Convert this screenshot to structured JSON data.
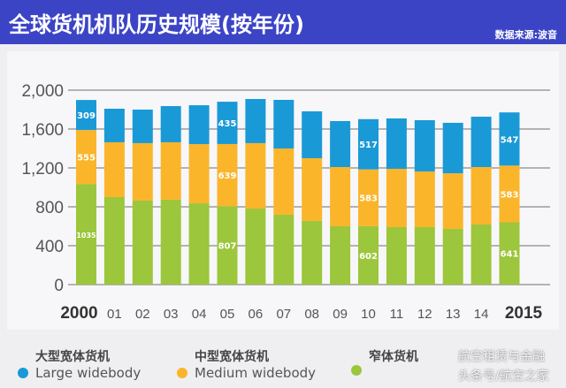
{
  "header": {
    "title": "全球货机机队历史规模(按年份)",
    "source": "数据来源:波音"
  },
  "colors": {
    "header": "#3c44c6",
    "large": "#1a99d7",
    "medium": "#fbb52b",
    "narrow": "#9cc63b"
  },
  "legend": [
    {
      "cn": "大型宽体货机",
      "en": "Large widebody",
      "color": "#1a99d7"
    },
    {
      "cn": "中型宽体货机",
      "en": "Medium widebody",
      "color": "#fbb52b"
    },
    {
      "cn": "窄体货机",
      "en": "",
      "color": "#9cc63b"
    }
  ],
  "watermark": {
    "line1": "航空租赁与金融",
    "line2": "头条号/航空之家"
  },
  "chart_data": {
    "type": "bar",
    "stacked": true,
    "categories": [
      "2000",
      "01",
      "02",
      "03",
      "04",
      "05",
      "06",
      "07",
      "08",
      "09",
      "10",
      "11",
      "12",
      "13",
      "14",
      "2015"
    ],
    "yticks": [
      "0",
      "400",
      "800",
      "1,200",
      "1,600",
      "2,000"
    ],
    "ylim": [
      0,
      2000
    ],
    "grid": true,
    "series": [
      {
        "name": "窄体货机",
        "color": "#9cc63b",
        "values": [
          1035,
          900,
          864,
          873,
          836,
          807,
          782,
          718,
          655,
          600,
          602,
          591,
          591,
          573,
          618,
          641
        ],
        "labels": {
          "0": "1035",
          "5": "807",
          "10": "602",
          "15": "641"
        }
      },
      {
        "name": "中型宽体货机 Medium widebody",
        "color": "#fbb52b",
        "values": [
          555,
          564,
          591,
          591,
          609,
          639,
          673,
          682,
          645,
          609,
          583,
          600,
          573,
          572,
          591,
          583
        ],
        "labels": {
          "0": "555",
          "5": "639",
          "10": "583",
          "15": "583"
        }
      },
      {
        "name": "大型宽体货机 Large widebody",
        "color": "#1a99d7",
        "values": [
          309,
          345,
          345,
          372,
          400,
          435,
          454,
          500,
          482,
          473,
          517,
          518,
          527,
          519,
          518,
          547
        ],
        "labels": {
          "0": "309",
          "5": "435",
          "10": "517",
          "15": "547"
        }
      }
    ]
  }
}
